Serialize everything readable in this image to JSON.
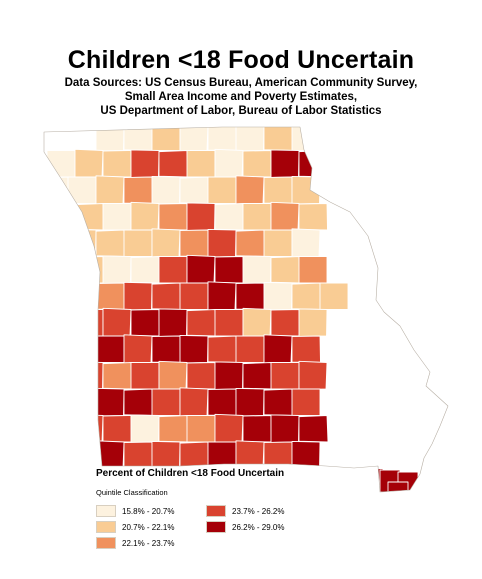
{
  "title": "Children <18 Food Uncertain",
  "sources": [
    "Data Sources: US Census Bureau, American Community Survey,",
    "Small Area Income and Poverty Estimates,",
    "US Department of Labor, Bureau of Labor Statistics"
  ],
  "legend": {
    "title": "Percent of Children <18 Food Uncertain",
    "subtitle": "Quintile Classification",
    "classes": [
      {
        "label": "15.8% - 20.7%",
        "color": "#fdf2df"
      },
      {
        "label": "20.7% - 22.1%",
        "color": "#f9cc94"
      },
      {
        "label": "22.1% - 23.7%",
        "color": "#f0915d"
      },
      {
        "label": "23.7% - 26.2%",
        "color": "#d9432f"
      },
      {
        "label": "26.2% - 29.0%",
        "color": "#a50008"
      }
    ]
  },
  "map": {
    "region": "Missouri counties",
    "grid_classes": [
      "..00100010",
      "0113310144",
      "0012001211",
      "0101230121",
      "0111123210",
      "1100344012",
      "12233344011",
      "2334433131",
      "3443443343",
      "2323234433",
      "2344334443",
      "1330223444",
      "3443334334",
      "..........44"
    ]
  }
}
